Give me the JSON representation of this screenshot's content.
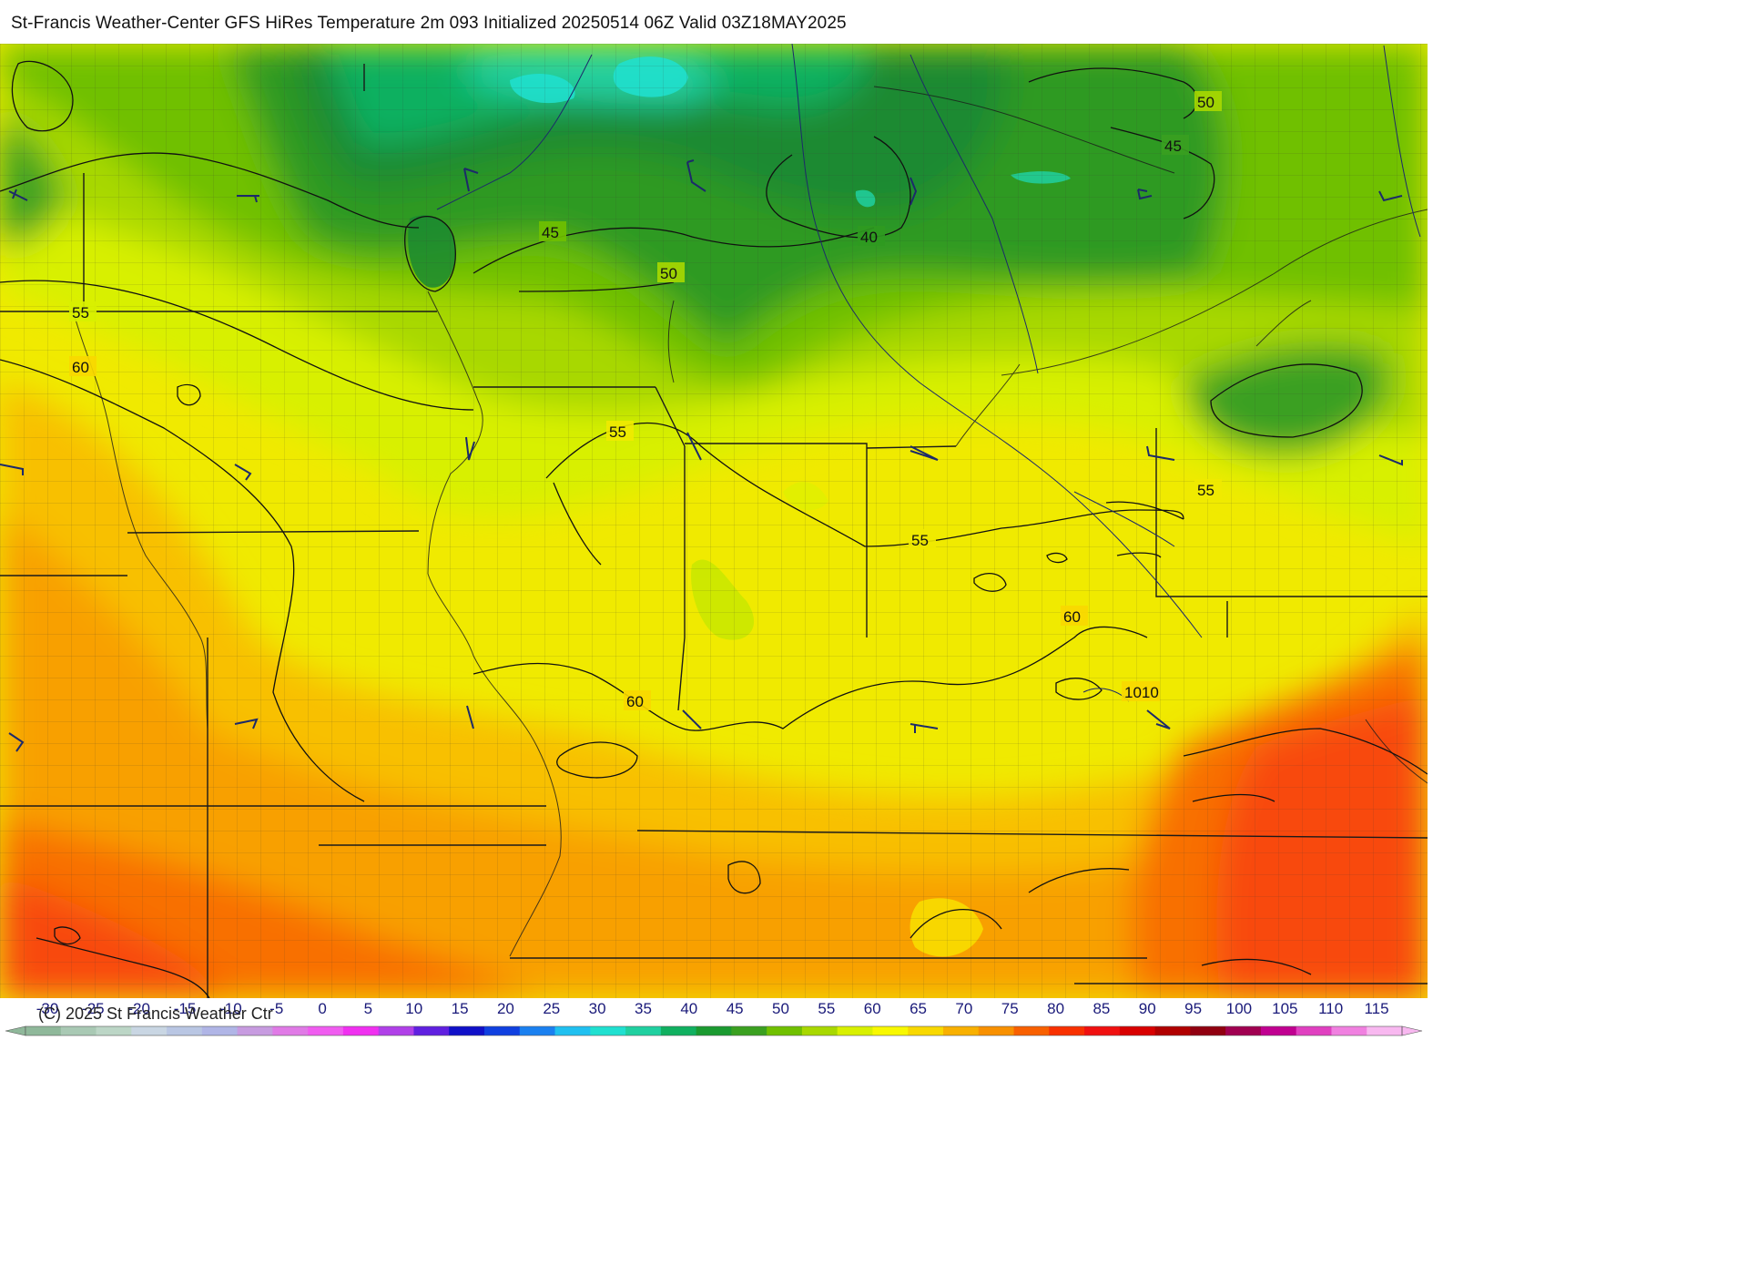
{
  "title": "St-Francis Weather-Center GFS HiRes Temperature 2m  093 Initialized 20250514 06Z Valid 03Z18MAY2025",
  "copyright": "(C) 2025 St Francis Weather Ctr",
  "map": {
    "field": "Temperature 2m",
    "units": "°F",
    "contour_labels": [
      {
        "text": "50",
        "value": 50
      },
      {
        "text": "45",
        "value": 45
      },
      {
        "text": "40",
        "value": 40
      },
      {
        "text": "45",
        "value": 45
      },
      {
        "text": "50",
        "value": 50
      },
      {
        "text": "55",
        "value": 55
      },
      {
        "text": "60",
        "value": 60
      },
      {
        "text": "55",
        "value": 55
      },
      {
        "text": "55",
        "value": 55
      },
      {
        "text": "55",
        "value": 55
      },
      {
        "text": "60",
        "value": 60
      },
      {
        "text": "60",
        "value": 60
      },
      {
        "text": "1010",
        "value": 1010
      }
    ]
  },
  "scale": {
    "labels": [
      "-30",
      "-25",
      "-20",
      "-15",
      "-10",
      "-5",
      "0",
      "5",
      "10",
      "15",
      "20",
      "25",
      "30",
      "35",
      "40",
      "45",
      "50",
      "55",
      "60",
      "65",
      "70",
      "75",
      "80",
      "85",
      "90",
      "95",
      "100",
      "105",
      "110",
      "115"
    ],
    "colors": [
      "#8fb89a",
      "#a9c9b4",
      "#bcd6c6",
      "#c9d6e3",
      "#b9c6e3",
      "#b0b5e6",
      "#c79be0",
      "#e07ae6",
      "#f05cf0",
      "#f030f0",
      "#b040e8",
      "#6020e0",
      "#1010c8",
      "#1040e0",
      "#1a80f0",
      "#20c0f0",
      "#20e0d0",
      "#20d0a0",
      "#10b060",
      "#1a9a30",
      "#3aa020",
      "#70c000",
      "#a8d800",
      "#d8f000",
      "#f8f800",
      "#f8d800",
      "#f8b000",
      "#f89000",
      "#f86000",
      "#f83000",
      "#f01010",
      "#d80000",
      "#b00000",
      "#900010",
      "#a00050",
      "#c00090",
      "#e040c0",
      "#f080e0",
      "#f8b8f0"
    ]
  },
  "colors": {
    "land_outline": "#1a1a1a",
    "pressure_contour": "#1c2a6a",
    "wind_barb": "#1c2a6a"
  }
}
